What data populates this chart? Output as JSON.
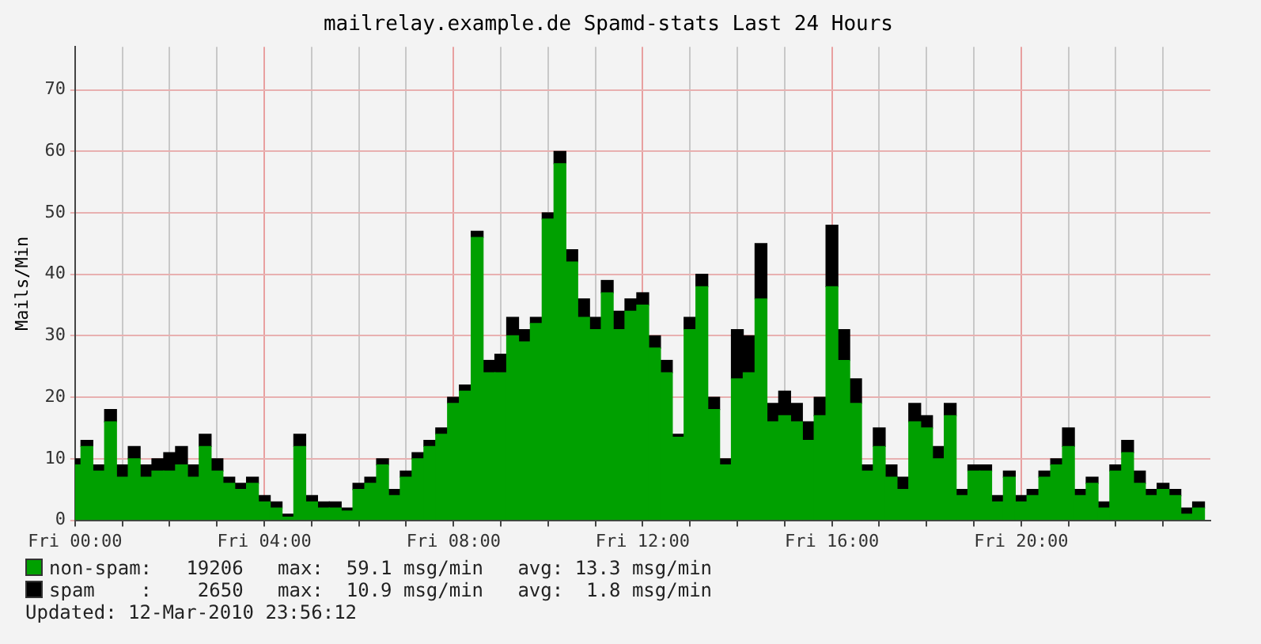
{
  "chart_data": {
    "type": "bar",
    "title": "mailrelay.example.de Spamd-stats Last 24 Hours",
    "ylabel": "Mails/Min",
    "stacked": true,
    "grid": true,
    "legend": "bottom",
    "x": [
      "2010-03-12T00:00",
      "2010-03-12T00:15",
      "2010-03-12T00:30",
      "2010-03-12T00:45",
      "2010-03-12T01:00",
      "2010-03-12T01:15",
      "2010-03-12T01:30",
      "2010-03-12T01:45",
      "2010-03-12T02:00",
      "2010-03-12T02:15",
      "2010-03-12T02:30",
      "2010-03-12T02:45",
      "2010-03-12T03:00",
      "2010-03-12T03:15",
      "2010-03-12T03:30",
      "2010-03-12T03:45",
      "2010-03-12T04:00",
      "2010-03-12T04:15",
      "2010-03-12T04:30",
      "2010-03-12T04:45",
      "2010-03-12T05:00",
      "2010-03-12T05:15",
      "2010-03-12T05:30",
      "2010-03-12T05:45",
      "2010-03-12T06:00",
      "2010-03-12T06:15",
      "2010-03-12T06:30",
      "2010-03-12T06:45",
      "2010-03-12T07:00",
      "2010-03-12T07:15",
      "2010-03-12T07:30",
      "2010-03-12T07:45",
      "2010-03-12T08:00",
      "2010-03-12T08:15",
      "2010-03-12T08:30",
      "2010-03-12T08:45",
      "2010-03-12T09:00",
      "2010-03-12T09:15",
      "2010-03-12T09:30",
      "2010-03-12T09:45",
      "2010-03-12T10:00",
      "2010-03-12T10:15",
      "2010-03-12T10:30",
      "2010-03-12T10:45",
      "2010-03-12T11:00",
      "2010-03-12T11:15",
      "2010-03-12T11:30",
      "2010-03-12T11:45",
      "2010-03-12T12:00",
      "2010-03-12T12:15",
      "2010-03-12T12:30",
      "2010-03-12T12:45",
      "2010-03-12T13:00",
      "2010-03-12T13:15",
      "2010-03-12T13:30",
      "2010-03-12T13:45",
      "2010-03-12T14:00",
      "2010-03-12T14:15",
      "2010-03-12T14:30",
      "2010-03-12T14:45",
      "2010-03-12T15:00",
      "2010-03-12T15:15",
      "2010-03-12T15:30",
      "2010-03-12T15:45",
      "2010-03-12T16:00",
      "2010-03-12T16:15",
      "2010-03-12T16:30",
      "2010-03-12T16:45",
      "2010-03-12T17:00",
      "2010-03-12T17:15",
      "2010-03-12T17:30",
      "2010-03-12T17:45",
      "2010-03-12T18:00",
      "2010-03-12T18:15",
      "2010-03-12T18:30",
      "2010-03-12T18:45",
      "2010-03-12T19:00",
      "2010-03-12T19:15",
      "2010-03-12T19:30",
      "2010-03-12T19:45",
      "2010-03-12T20:00",
      "2010-03-12T20:15",
      "2010-03-12T20:30",
      "2010-03-12T20:45",
      "2010-03-12T21:00",
      "2010-03-12T21:15",
      "2010-03-12T21:30",
      "2010-03-12T21:45",
      "2010-03-12T22:00",
      "2010-03-12T22:15",
      "2010-03-12T22:30",
      "2010-03-12T22:45",
      "2010-03-12T23:00",
      "2010-03-12T23:15",
      "2010-03-12T23:30",
      "2010-03-12T23:45"
    ],
    "series": [
      {
        "name": "non-spam",
        "color": "#00a000",
        "values": [
          9,
          12,
          8,
          16,
          7,
          10,
          7,
          8,
          8,
          9,
          7,
          12,
          8,
          6,
          5,
          6,
          3,
          2,
          0.5,
          12,
          3,
          2,
          2,
          1.5,
          5,
          6,
          9,
          4,
          7,
          10,
          12,
          14,
          19,
          21,
          46,
          24,
          24,
          30,
          29,
          32,
          49,
          58,
          42,
          33,
          31,
          37,
          31,
          34,
          35,
          28,
          24,
          13.5,
          31,
          38,
          18,
          9,
          23,
          24,
          36,
          16,
          17,
          16,
          13,
          17,
          38,
          26,
          19,
          8,
          12,
          7,
          5,
          16,
          15,
          10,
          17,
          4,
          8,
          8,
          3,
          7,
          3,
          4,
          7,
          9,
          12,
          4,
          6,
          2,
          8,
          11,
          6,
          4,
          5,
          4,
          1,
          2
        ]
      },
      {
        "name": "spam",
        "color": "#000000",
        "values": [
          1,
          1,
          1,
          2,
          2,
          2,
          2,
          2,
          3,
          3,
          2,
          2,
          2,
          1,
          1,
          1,
          1,
          1,
          0.5,
          2,
          1,
          1,
          1,
          0.5,
          1,
          1,
          1,
          1,
          1,
          1,
          1,
          1,
          1,
          1,
          1,
          2,
          3,
          3,
          2,
          1,
          1,
          2,
          2,
          3,
          2,
          2,
          3,
          2,
          2,
          2,
          2,
          0.5,
          2,
          2,
          2,
          1,
          8,
          6,
          9,
          3,
          4,
          3,
          3,
          3,
          10,
          5,
          4,
          1,
          3,
          2,
          2,
          3,
          2,
          2,
          2,
          1,
          1,
          1,
          1,
          1,
          1,
          1,
          1,
          1,
          3,
          1,
          1,
          1,
          1,
          2,
          2,
          1,
          1,
          1,
          1,
          1
        ]
      }
    ],
    "xlim": [
      "2010-03-12T00:00",
      "2010-03-13T00:00"
    ],
    "xticks": [
      {
        "value": "2010-03-12T00:00",
        "label": "Fri 00:00"
      },
      {
        "value": "2010-03-12T01:00",
        "label": null
      },
      {
        "value": "2010-03-12T02:00",
        "label": null
      },
      {
        "value": "2010-03-12T03:00",
        "label": null
      },
      {
        "value": "2010-03-12T04:00",
        "label": "Fri 04:00"
      },
      {
        "value": "2010-03-12T05:00",
        "label": null
      },
      {
        "value": "2010-03-12T06:00",
        "label": null
      },
      {
        "value": "2010-03-12T07:00",
        "label": null
      },
      {
        "value": "2010-03-12T08:00",
        "label": "Fri 08:00"
      },
      {
        "value": "2010-03-12T09:00",
        "label": null
      },
      {
        "value": "2010-03-12T10:00",
        "label": null
      },
      {
        "value": "2010-03-12T11:00",
        "label": null
      },
      {
        "value": "2010-03-12T12:00",
        "label": "Fri 12:00"
      },
      {
        "value": "2010-03-12T13:00",
        "label": null
      },
      {
        "value": "2010-03-12T14:00",
        "label": null
      },
      {
        "value": "2010-03-12T15:00",
        "label": null
      },
      {
        "value": "2010-03-12T16:00",
        "label": "Fri 16:00"
      },
      {
        "value": "2010-03-12T17:00",
        "label": null
      },
      {
        "value": "2010-03-12T18:00",
        "label": null
      },
      {
        "value": "2010-03-12T19:00",
        "label": null
      },
      {
        "value": "2010-03-12T20:00",
        "label": "Fri 20:00"
      },
      {
        "value": "2010-03-12T21:00",
        "label": null
      },
      {
        "value": "2010-03-12T22:00",
        "label": null
      },
      {
        "value": "2010-03-12T23:00",
        "label": null
      }
    ],
    "ylim": [
      0,
      77
    ],
    "yticks": [
      0,
      10,
      20,
      30,
      40,
      50,
      60,
      70
    ],
    "annotations": [
      ":   19206   max:  59.1 msg/min   avg: 13.3 msg/min",
      ":    2650   max:  10.9 msg/min   avg:  1.8 msg/min",
      "Updated: 12-Mar-2010 23:56:12"
    ]
  }
}
